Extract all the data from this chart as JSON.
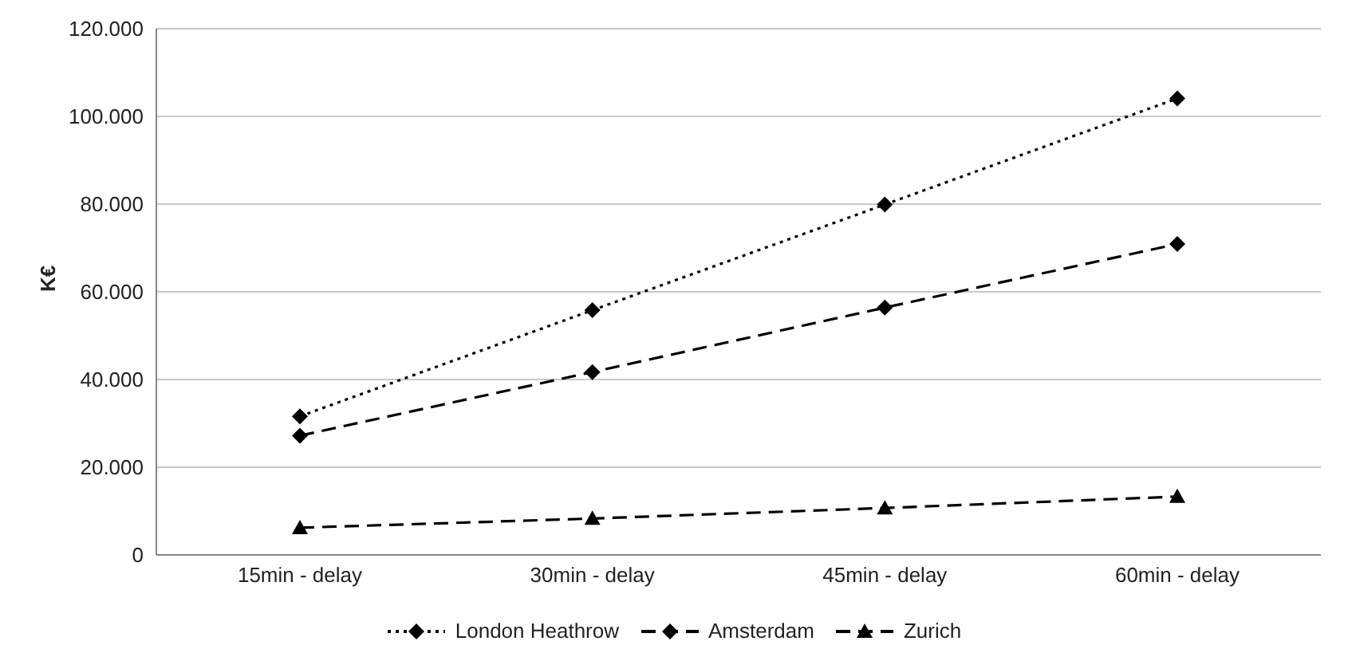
{
  "chart_data": {
    "type": "line",
    "ylabel": "K€",
    "categories": [
      "15min - delay",
      "30min - delay",
      "45min - delay",
      "60min - delay"
    ],
    "series": [
      {
        "name": "London Heathrow",
        "color": "#000000",
        "values": [
          31600,
          55800,
          79900,
          104100
        ],
        "marker": "diamond",
        "line_style": "dotted"
      },
      {
        "name": "Amsterdam",
        "color": "#000000",
        "values": [
          27200,
          41700,
          56400,
          70900
        ],
        "marker": "diamond",
        "line_style": "dashed"
      },
      {
        "name": "Zurich",
        "color": "#000000",
        "values": [
          6200,
          8300,
          10700,
          13300
        ],
        "marker": "triangle",
        "line_style": "dashed"
      }
    ],
    "ylim": [
      0,
      120000
    ],
    "yticks": [
      {
        "value": 0,
        "label": "0"
      },
      {
        "value": 20000,
        "label": "20.000"
      },
      {
        "value": 40000,
        "label": "40.000"
      },
      {
        "value": 60000,
        "label": "60.000"
      },
      {
        "value": 80000,
        "label": "80.000"
      },
      {
        "value": 100000,
        "label": "100.000"
      },
      {
        "value": 120000,
        "label": "120.000"
      }
    ],
    "grid": "y",
    "legend": "bottom"
  }
}
